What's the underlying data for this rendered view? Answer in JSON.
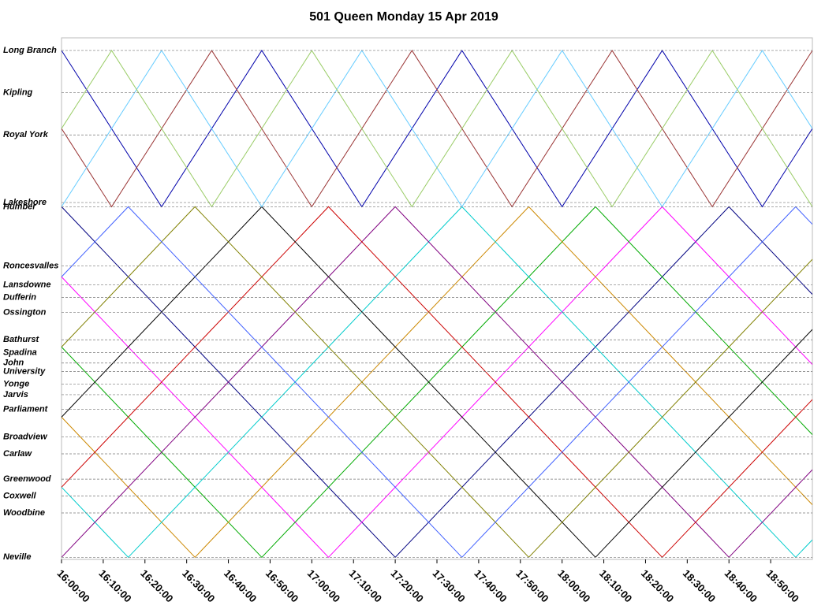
{
  "chart_data": {
    "type": "line",
    "title": "501 Queen  Monday  15 Apr 2019",
    "xlim": [
      960,
      1140
    ],
    "ylim": [
      -0.1,
      24.6
    ],
    "grid": true,
    "xticks": [
      {
        "value": 960,
        "label": "16:00:00"
      },
      {
        "value": 970,
        "label": "16:10:00"
      },
      {
        "value": 980,
        "label": "16:20:00"
      },
      {
        "value": 990,
        "label": "16:30:00"
      },
      {
        "value": 1000,
        "label": "16:40:00"
      },
      {
        "value": 1010,
        "label": "16:50:00"
      },
      {
        "value": 1020,
        "label": "17:00:00"
      },
      {
        "value": 1030,
        "label": "17:10:00"
      },
      {
        "value": 1040,
        "label": "17:20:00"
      },
      {
        "value": 1050,
        "label": "17:30:00"
      },
      {
        "value": 1060,
        "label": "17:40:00"
      },
      {
        "value": 1070,
        "label": "17:50:00"
      },
      {
        "value": 1080,
        "label": "18:00:00"
      },
      {
        "value": 1090,
        "label": "18:10:00"
      },
      {
        "value": 1100,
        "label": "18:20:00"
      },
      {
        "value": 1110,
        "label": "18:30:00"
      },
      {
        "value": 1120,
        "label": "18:40:00"
      },
      {
        "value": 1130,
        "label": "18:50:00"
      }
    ],
    "yticks": [
      {
        "value": 24.0,
        "label": "Long Branch"
      },
      {
        "value": 22.0,
        "label": "Kipling"
      },
      {
        "value": 20.0,
        "label": "Royal York"
      },
      {
        "value": 16.8,
        "label": "Lakeshore"
      },
      {
        "value": 16.6,
        "label": "Humber"
      },
      {
        "value": 13.8,
        "label": "Roncesvalles"
      },
      {
        "value": 12.9,
        "label": "Lansdowne"
      },
      {
        "value": 12.3,
        "label": "Dufferin"
      },
      {
        "value": 11.6,
        "label": "Ossington"
      },
      {
        "value": 10.3,
        "label": "Bathurst"
      },
      {
        "value": 9.7,
        "label": "Spadina"
      },
      {
        "value": 9.2,
        "label": "John"
      },
      {
        "value": 8.8,
        "label": "University"
      },
      {
        "value": 8.2,
        "label": "Yonge"
      },
      {
        "value": 7.7,
        "label": "Jarvis"
      },
      {
        "value": 7.0,
        "label": "Parliament"
      },
      {
        "value": 5.7,
        "label": "Broadview"
      },
      {
        "value": 4.9,
        "label": "Carlaw"
      },
      {
        "value": 3.7,
        "label": "Greenwood"
      },
      {
        "value": 2.9,
        "label": "Coxwell"
      },
      {
        "value": 2.1,
        "label": "Woodbine"
      },
      {
        "value": 0,
        "label": "Neville"
      }
    ],
    "series": [
      {
        "color": "#000080",
        "x": [
          960,
          1040,
          1120,
          1140
        ],
        "values": [
          16.6,
          0,
          16.6,
          12.45
        ]
      },
      {
        "color": "#ff00ff",
        "x": [
          960,
          1024,
          1104,
          1140
        ],
        "values": [
          13.28,
          0,
          16.6,
          9.13
        ]
      },
      {
        "color": "#00aa00",
        "x": [
          960,
          1008,
          1088,
          1140
        ],
        "values": [
          9.96,
          0,
          16.6,
          5.81
        ]
      },
      {
        "color": "#cc8800",
        "x": [
          960,
          992,
          1072,
          1140
        ],
        "values": [
          6.64,
          0,
          16.6,
          2.49
        ]
      },
      {
        "color": "#00cccc",
        "x": [
          960,
          976,
          1056,
          1136,
          1140
        ],
        "values": [
          3.32,
          0,
          16.6,
          0,
          0.83
        ]
      },
      {
        "color": "#800080",
        "x": [
          960,
          1040,
          1120,
          1140
        ],
        "values": [
          0,
          16.6,
          0,
          4.15
        ]
      },
      {
        "color": "#cc0000",
        "x": [
          960,
          1024,
          1104,
          1140
        ],
        "values": [
          3.32,
          16.6,
          0,
          7.47
        ]
      },
      {
        "color": "#000000",
        "x": [
          960,
          1008,
          1088,
          1140
        ],
        "values": [
          6.64,
          16.6,
          0,
          10.79
        ]
      },
      {
        "color": "#808000",
        "x": [
          960,
          992,
          1072,
          1140
        ],
        "values": [
          9.96,
          16.6,
          0,
          14.11
        ]
      },
      {
        "color": "#4060ff",
        "x": [
          960,
          976,
          1056,
          1136,
          1140
        ],
        "values": [
          13.28,
          16.6,
          0,
          16.6,
          15.77
        ]
      },
      {
        "color": "#0000aa",
        "x": [
          960,
          984,
          1008,
          1032,
          1056,
          1080,
          1104,
          1128,
          1140
        ],
        "values": [
          24,
          16.6,
          24,
          16.6,
          24,
          16.6,
          24,
          16.6,
          20.3
        ]
      },
      {
        "color": "#993333",
        "x": [
          960,
          972,
          996,
          1020,
          1044,
          1068,
          1092,
          1116,
          1140
        ],
        "values": [
          20.3,
          16.6,
          24,
          16.6,
          24,
          16.6,
          24,
          16.6,
          24
        ]
      },
      {
        "color": "#66ccff",
        "x": [
          960,
          984,
          1008,
          1032,
          1056,
          1080,
          1104,
          1128,
          1140
        ],
        "values": [
          16.6,
          24,
          16.6,
          24,
          16.6,
          24,
          16.6,
          24,
          20.3
        ]
      },
      {
        "color": "#99cc66",
        "x": [
          960,
          972,
          996,
          1020,
          1044,
          1068,
          1092,
          1116,
          1140
        ],
        "values": [
          20.3,
          24,
          16.6,
          24,
          16.6,
          24,
          16.6,
          24,
          16.6
        ]
      }
    ]
  }
}
